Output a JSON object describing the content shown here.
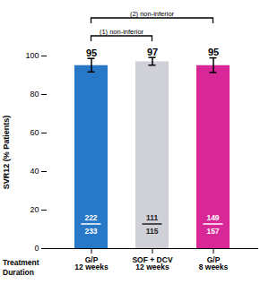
{
  "chart_data": {
    "type": "bar",
    "categories": [
      "G/P\n12 weeks",
      "SOF + DCV\n12 weeks",
      "G/P\n8 weeks"
    ],
    "values": [
      95,
      97,
      95
    ],
    "errors": [
      3.5,
      2.0,
      3.8
    ],
    "colors": [
      "#2878c8",
      "#d0d0d8",
      "#d82898"
    ],
    "data_labels": true,
    "numerators": [
      222,
      111,
      149
    ],
    "denominators": [
      233,
      115,
      157
    ],
    "ylabel": "SVR12 (% Patients)",
    "xlabel": "Treatment\nDuration",
    "ylim": [
      0,
      100
    ],
    "yticks": [
      0,
      20,
      40,
      60,
      80,
      100
    ],
    "grid": false,
    "brackets": [
      {
        "label": "(1) non-inferior",
        "from": "G/P\n12 weeks",
        "to": "SOF + DCV\n12 weeks"
      },
      {
        "label": "(2) non-inferior",
        "from": "G/P\n12 weeks",
        "to": "G/P\n8 weeks"
      }
    ]
  }
}
